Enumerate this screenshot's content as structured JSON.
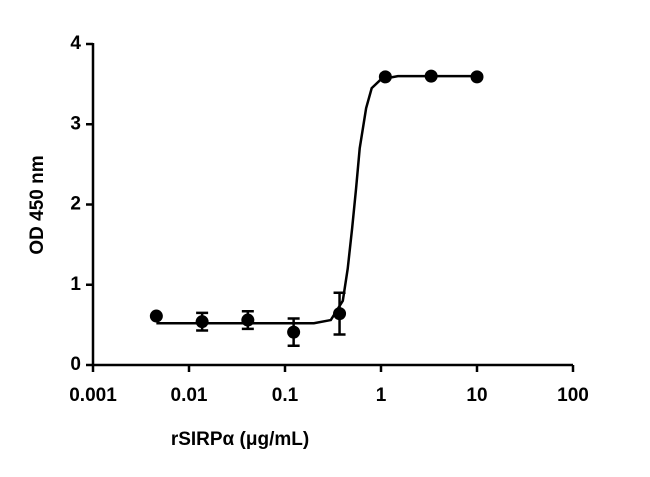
{
  "chart_data": {
    "type": "scatter",
    "xlabel": "rSIRPα (μg/mL)",
    "ylabel": "OD 450 nm",
    "xscale": "log",
    "xlim": [
      0.001,
      100
    ],
    "xticks": [
      0.001,
      0.01,
      0.1,
      1,
      10,
      100
    ],
    "ylim": [
      0,
      4
    ],
    "yticks": [
      0,
      1,
      2,
      3,
      4
    ],
    "color": "#000000",
    "series": [
      {
        "kind": "points",
        "x": [
          0.00457,
          0.0137,
          0.041,
          0.123,
          0.37,
          1.11,
          3.33,
          10
        ],
        "values": [
          0.61,
          0.54,
          0.56,
          0.41,
          0.64,
          3.59,
          3.6,
          3.59
        ],
        "errors": [
          null,
          0.11,
          0.11,
          0.17,
          0.26,
          null,
          null,
          null
        ]
      },
      {
        "kind": "curve",
        "x": [
          0.00457,
          0.2,
          0.3,
          0.4,
          0.45,
          0.5,
          0.55,
          0.6,
          0.7,
          0.8,
          1,
          1.5,
          10
        ],
        "values": [
          0.52,
          0.52,
          0.56,
          0.8,
          1.2,
          1.7,
          2.2,
          2.7,
          3.2,
          3.45,
          3.56,
          3.6,
          3.6
        ]
      }
    ]
  }
}
